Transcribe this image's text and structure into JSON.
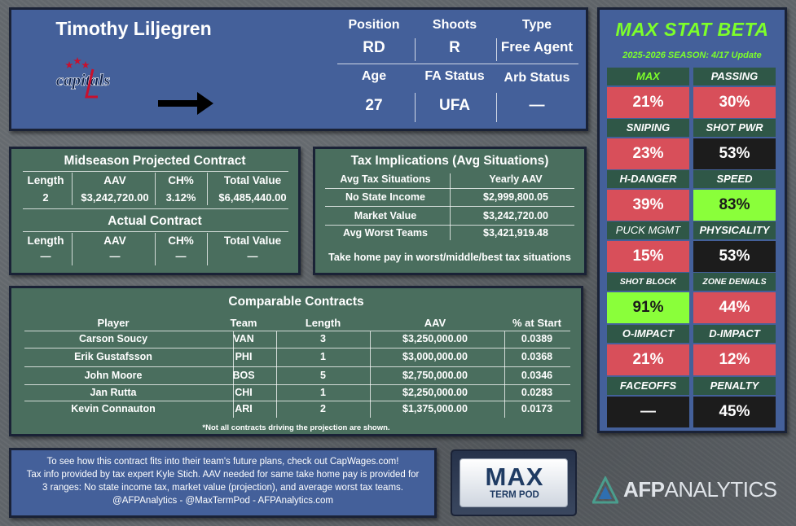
{
  "header": {
    "player_name": "Timothy Liljegren",
    "team_logo_text": "capitals",
    "fields": [
      {
        "label": "Position",
        "value": "RD"
      },
      {
        "label": "Shoots",
        "value": "R"
      },
      {
        "label": "Type",
        "value": "Free Agent"
      },
      {
        "label": "Age",
        "value": "27"
      },
      {
        "label": "FA Status",
        "value": "UFA"
      },
      {
        "label": "Arb Status",
        "value": "—"
      }
    ],
    "icons": {
      "arrow": "right-arrow-icon",
      "logo": "capitals-logo"
    }
  },
  "projected_contract": {
    "title": "Midseason Projected Contract",
    "headers": [
      "Length",
      "AAV",
      "CH%",
      "Total Value"
    ],
    "values": [
      "2",
      "$3,242,720.00",
      "3.12%",
      "$6,485,440.00"
    ]
  },
  "actual_contract": {
    "title": "Actual Contract",
    "headers": [
      "Length",
      "AAV",
      "CH%",
      "Total Value"
    ],
    "values": [
      "—",
      "—",
      "—",
      "—"
    ]
  },
  "tax": {
    "title": "Tax Implications (Avg Situations)",
    "headers": [
      "Avg Tax Situations",
      "Yearly AAV"
    ],
    "rows": [
      [
        "No State Income",
        "$2,999,800.05"
      ],
      [
        "Market Value",
        "$3,242,720.00"
      ],
      [
        "Avg Worst Teams",
        "$3,421,919.48"
      ]
    ],
    "note": "Take home pay in worst/middle/best tax situations"
  },
  "comparables": {
    "title": "Comparable Contracts",
    "headers": [
      "Player",
      "Team",
      "Length",
      "AAV",
      "% at Start"
    ],
    "rows": [
      [
        "Carson Soucy",
        "VAN",
        "3",
        "$3,250,000.00",
        "0.0389"
      ],
      [
        "Erik Gustafsson",
        "PHI",
        "1",
        "$3,000,000.00",
        "0.0368"
      ],
      [
        "John Moore",
        "BOS",
        "5",
        "$2,750,000.00",
        "0.0346"
      ],
      [
        "Jan Rutta",
        "CHI",
        "1",
        "$2,250,000.00",
        "0.0283"
      ],
      [
        "Kevin Connauton",
        "ARI",
        "2",
        "$1,375,000.00",
        "0.0173"
      ]
    ],
    "footnote": "*Not all contracts driving the projection are shown."
  },
  "footer": {
    "lines": [
      "To see how this contract fits into their team's future plans, check out CapWages.com!",
      "Tax info provided by tax expert Kyle Stich. AAV needed for same take home pay is provided for",
      "3 ranges: No state income tax, market value (projection), and average worst tax teams.",
      "@AFPAnalytics - @MaxTermPod - AFPAnalytics.com"
    ]
  },
  "podcast_logo": {
    "title": "MAX",
    "subtitle": "TERM POD"
  },
  "brand_logo": {
    "text": "AFPANALYTICS",
    "bold_part": "AFP",
    "light_part": "ANALYTICS"
  },
  "stat_card": {
    "title": "MAX STAT BETA",
    "season": "2025-2026 SEASON: 4/17 Update",
    "stats": [
      {
        "label": "MAX",
        "value": "21%",
        "color": "red"
      },
      {
        "label": "PASSING",
        "value": "30%",
        "color": "red"
      },
      {
        "label": "SNIPING",
        "value": "23%",
        "color": "red"
      },
      {
        "label": "SHOT PWR",
        "value": "53%",
        "color": "black"
      },
      {
        "label": "H-DANGER",
        "value": "39%",
        "color": "red"
      },
      {
        "label": "SPEED",
        "value": "83%",
        "color": "lime"
      },
      {
        "label": "PUCK MGMT",
        "value": "15%",
        "color": "red"
      },
      {
        "label": "PHYSICALITY",
        "value": "53%",
        "color": "black"
      },
      {
        "label": "SHOT BLOCK",
        "value": "91%",
        "color": "lime"
      },
      {
        "label": "ZONE DENIALS",
        "value": "44%",
        "color": "red"
      },
      {
        "label": "O-IMPACT",
        "value": "21%",
        "color": "red"
      },
      {
        "label": "D-IMPACT",
        "value": "12%",
        "color": "red"
      },
      {
        "label": "FACEOFFS",
        "value": "—",
        "color": "black"
      },
      {
        "label": "PENALTY",
        "value": "45%",
        "color": "black"
      }
    ]
  },
  "colors": {
    "blue_panel": "#44609a",
    "green_panel": "#4a6e5e",
    "accent_green": "#7dff2a",
    "stat_red": "#d84f5a",
    "stat_black": "#1c1c1c",
    "stat_lime": "#8aff3a"
  }
}
